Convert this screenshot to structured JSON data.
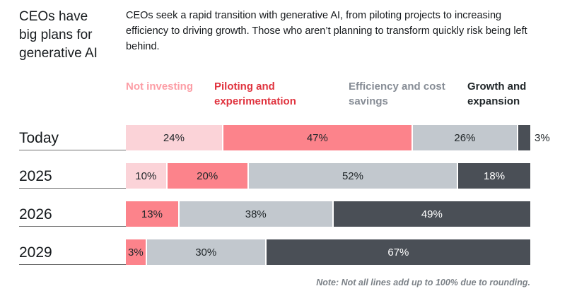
{
  "header": {
    "title": "CEOs have big plans for generative AI",
    "description": "CEOs seek a rapid transition with generative AI, from piloting projects to increasing efficiency to driving growth. Those who aren’t planning to transform quickly risk being left behind."
  },
  "legend": [
    {
      "key": "not_investing",
      "label": "Not investing",
      "color": "#fc9da5"
    },
    {
      "key": "piloting",
      "label": "Piloting and experimentation",
      "color": "#e0343f"
    },
    {
      "key": "efficiency",
      "label": "Efficiency and cost savings",
      "color": "#878d96"
    },
    {
      "key": "growth",
      "label": "Growth and expansion",
      "color": "#21272a"
    }
  ],
  "chart_data": {
    "type": "bar",
    "variant": "horizontal-stacked",
    "unit": "%",
    "xlim": [
      0,
      100
    ],
    "categories": [
      "Today",
      "2025",
      "2026",
      "2029"
    ],
    "series": [
      {
        "key": "not_investing",
        "name": "Not investing",
        "color": "#fbd3d8",
        "text_color": "#21272a",
        "values": [
          24,
          10,
          0,
          0
        ]
      },
      {
        "key": "piloting",
        "name": "Piloting and experimentation",
        "color": "#fc838b",
        "text_color": "#21272a",
        "values": [
          47,
          20,
          13,
          3
        ]
      },
      {
        "key": "efficiency",
        "name": "Efficiency and cost savings",
        "color": "#c2c8ce",
        "text_color": "#21272a",
        "values": [
          26,
          52,
          38,
          30
        ]
      },
      {
        "key": "growth",
        "name": "Growth and expansion",
        "color": "#4a4f56",
        "text_color": "#ffffff",
        "values": [
          3,
          18,
          49,
          67
        ]
      }
    ],
    "outside_labels": [
      {
        "row": 0,
        "series": 3
      }
    ],
    "note": "Note: Not all lines add up to 100% due to rounding."
  }
}
